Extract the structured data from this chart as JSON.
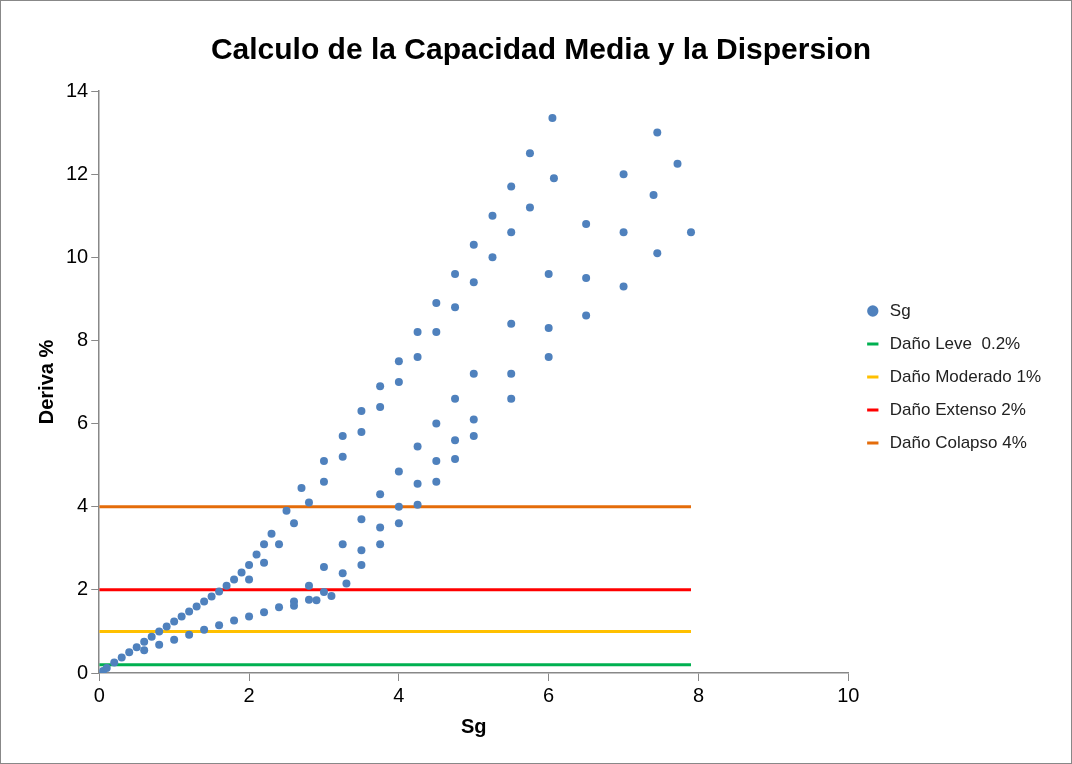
{
  "chart_data": {
    "type": "scatter",
    "title": "Calculo de la Capacidad Media y la Dispersion",
    "xlabel": "Sg",
    "ylabel": "Deriva %",
    "xlim": [
      0,
      10
    ],
    "xticks": [
      0,
      2,
      4,
      6,
      8,
      10
    ],
    "ylim": [
      0,
      14
    ],
    "yticks": [
      0,
      2,
      4,
      6,
      8,
      10,
      12,
      14
    ],
    "grid": false,
    "legend": "right",
    "series": [
      {
        "name": "Sg",
        "color": "#4f81bd",
        "marker": "circle",
        "x": [
          0.05,
          0.1,
          0.2,
          0.3,
          0.4,
          0.5,
          0.6,
          0.7,
          0.8,
          0.9,
          1.0,
          1.1,
          1.2,
          1.3,
          1.4,
          1.5,
          1.6,
          1.7,
          1.8,
          1.9,
          2.0,
          2.1,
          2.2,
          2.3,
          2.5,
          2.7,
          3.0,
          3.25,
          3.5,
          3.75,
          4.0,
          4.25,
          4.5,
          4.75,
          5.0,
          5.25,
          5.5,
          5.75,
          6.05,
          2.0,
          2.2,
          2.4,
          2.6,
          2.8,
          3.0,
          3.25,
          3.5,
          3.75,
          4.0,
          4.25,
          4.5,
          4.75,
          5.0,
          5.25,
          5.5,
          5.75,
          6.07,
          0.6,
          0.8,
          1.0,
          1.2,
          1.4,
          1.6,
          1.8,
          2.0,
          2.2,
          2.4,
          2.6,
          2.8,
          3.0,
          3.25,
          3.5,
          3.75,
          4.0,
          4.25,
          4.5,
          4.75,
          5.0,
          5.5,
          6.0,
          6.5,
          7.0,
          7.45,
          2.6,
          2.8,
          3.0,
          3.25,
          3.5,
          3.75,
          4.0,
          4.25,
          4.5,
          4.75,
          5.0,
          5.5,
          6.0,
          6.5,
          7.0,
          7.4,
          7.72,
          2.9,
          3.1,
          3.3,
          3.5,
          3.75,
          4.0,
          4.25,
          4.5,
          4.75,
          5.0,
          5.5,
          6.0,
          6.5,
          7.0,
          7.45,
          7.9
        ],
        "values": [
          0.05,
          0.12,
          0.25,
          0.37,
          0.5,
          0.62,
          0.75,
          0.87,
          1.0,
          1.12,
          1.24,
          1.36,
          1.48,
          1.6,
          1.72,
          1.84,
          1.96,
          2.1,
          2.25,
          2.42,
          2.6,
          2.85,
          3.1,
          3.35,
          3.9,
          4.45,
          5.1,
          5.7,
          6.3,
          6.9,
          7.5,
          8.2,
          8.9,
          9.6,
          10.3,
          11.0,
          11.7,
          12.5,
          13.35,
          2.25,
          2.65,
          3.1,
          3.6,
          4.1,
          4.6,
          5.2,
          5.8,
          6.4,
          7.0,
          7.6,
          8.2,
          8.8,
          9.4,
          10.0,
          10.6,
          11.2,
          11.9,
          0.55,
          0.68,
          0.8,
          0.92,
          1.04,
          1.15,
          1.26,
          1.36,
          1.46,
          1.58,
          1.72,
          2.1,
          2.55,
          3.1,
          3.7,
          4.3,
          4.85,
          5.45,
          6.0,
          6.6,
          7.2,
          8.4,
          9.6,
          10.8,
          12.0,
          13.0,
          1.62,
          1.76,
          1.95,
          2.4,
          2.95,
          3.5,
          4.0,
          4.55,
          5.1,
          5.6,
          6.1,
          7.2,
          8.3,
          9.5,
          10.6,
          11.5,
          12.25,
          1.75,
          1.85,
          2.15,
          2.6,
          3.1,
          3.6,
          4.05,
          4.6,
          5.15,
          5.7,
          6.6,
          7.6,
          8.6,
          9.3,
          10.1,
          10.6
        ]
      },
      {
        "name": "Daño Leve  0.2%",
        "type": "line",
        "marker": "none",
        "color": "#00b050",
        "x": [
          0,
          7.9
        ],
        "values": [
          0.2,
          0.2
        ]
      },
      {
        "name": "Daño Moderado 1%",
        "type": "line",
        "marker": "none",
        "color": "#ffc000",
        "x": [
          0,
          7.9
        ],
        "values": [
          1,
          1
        ]
      },
      {
        "name": "Daño Extenso 2%",
        "type": "line",
        "marker": "none",
        "color": "#ff0000",
        "x": [
          0,
          7.9
        ],
        "values": [
          2,
          2
        ]
      },
      {
        "name": "Daño Colapso 4%",
        "type": "line",
        "marker": "none",
        "color": "#e46c0a",
        "x": [
          0,
          7.9
        ],
        "values": [
          4,
          4
        ]
      }
    ]
  }
}
